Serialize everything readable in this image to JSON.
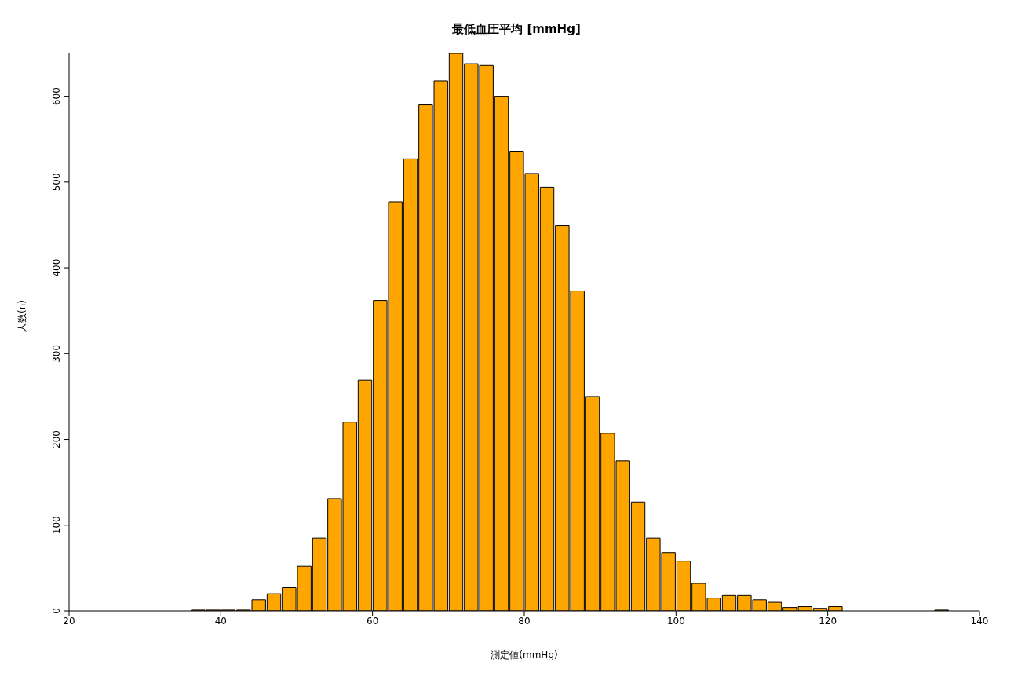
{
  "chart_data": {
    "type": "histogram",
    "title": "最低血圧平均 [mmHg]",
    "xlabel": "測定値(mmHg)",
    "ylabel": "人数(n)",
    "bins": [
      36,
      38,
      40,
      42,
      44,
      46,
      48,
      50,
      52,
      54,
      56,
      58,
      60,
      62,
      64,
      66,
      68,
      70,
      72,
      74,
      76,
      78,
      80,
      82,
      84,
      86,
      88,
      90,
      92,
      94,
      96,
      98,
      100,
      102,
      104,
      106,
      108,
      110,
      112,
      114,
      116,
      118,
      120,
      122,
      124,
      126,
      128,
      130,
      132,
      134,
      136
    ],
    "values": [
      1,
      1,
      1,
      1,
      13,
      20,
      27,
      52,
      85,
      131,
      220,
      269,
      362,
      477,
      527,
      590,
      618,
      650,
      638,
      636,
      600,
      536,
      510,
      494,
      449,
      373,
      250,
      207,
      175,
      127,
      85,
      68,
      58,
      32,
      15,
      18,
      18,
      13,
      10,
      4,
      5,
      3,
      5,
      0,
      0,
      0,
      0,
      0,
      0,
      1
    ],
    "color": "#ffa500",
    "xlim": [
      20,
      140
    ],
    "xticks": [
      20,
      40,
      60,
      80,
      100,
      120,
      140
    ],
    "ylim": [
      0,
      650
    ],
    "yticks": [
      0,
      100,
      200,
      300,
      400,
      500,
      600
    ],
    "grid": false,
    "legend": false
  }
}
